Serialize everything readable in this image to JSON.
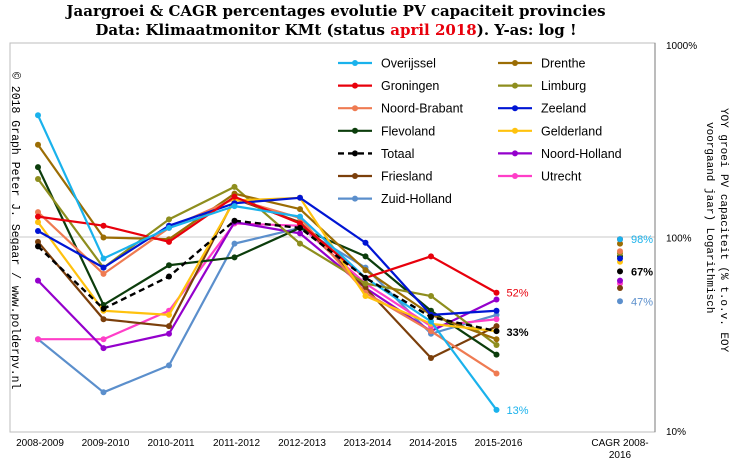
{
  "chart_data": {
    "type": "line",
    "title_line1": "Jaargroei & CAGR percentages evolutie PV capaciteit provincies",
    "title_line2_parts": [
      "Data: Klimaatmonitor  KMt (status ",
      "april 2018",
      "). Y-as: log !"
    ],
    "credit": "© 2018 Graph Peter J. Segaar / www.polderpv.nl",
    "ylabel_line1": "YOY groei PV capaciteit (% t.o.v. EOY",
    "ylabel_line2": "voorgaand jaar) Logarithmisch",
    "yscale": "log",
    "ylim": [
      10,
      1000
    ],
    "y_ticks": [
      "10%",
      "100%",
      "1000%"
    ],
    "categories": [
      "2008-2009",
      "2009-2010",
      "2010-2011",
      "2011-2012",
      "2012-2013",
      "2013-2014",
      "2014-2015",
      "2015-2016"
    ],
    "cagr_category_line1": "CAGR 2008-",
    "cagr_category_line2": "2016",
    "series": [
      {
        "name": "Overijssel",
        "color": "#1ab2ec",
        "values": [
          425,
          78,
          112,
          145,
          128,
          62,
          37,
          13
        ],
        "cagr": 98
      },
      {
        "name": "Groningen",
        "color": "#e8000c",
        "values": [
          128,
          115,
          95,
          162,
          118,
          62,
          80,
          52
        ],
        "cagr": 98
      },
      {
        "name": "Noord-Brabant",
        "color": "#ef7b52",
        "values": [
          135,
          65,
          112,
          158,
          126,
          52,
          33,
          20
        ],
        "cagr": 85
      },
      {
        "name": "Flevoland",
        "color": "#0c3d0c",
        "values": [
          230,
          45,
          72,
          79,
          112,
          80,
          42,
          25
        ],
        "cagr": 80
      },
      {
        "name": "Totaal",
        "color": "#000000",
        "dashed": true,
        "values": [
          90,
          43,
          63,
          122,
          112,
          62,
          39,
          33
        ],
        "cagr": 67
      },
      {
        "name": "Friesland",
        "color": "#7b3f0b",
        "values": [
          95,
          38,
          35,
          158,
          120,
          55,
          24,
          35
        ],
        "cagr": 55
      },
      {
        "name": "Zuid-Holland",
        "color": "#5b8fcc",
        "values": [
          30,
          16,
          22,
          93,
          112,
          70,
          32,
          40
        ],
        "cagr": 47
      },
      {
        "name": "Drenthe",
        "color": "#9b6d04",
        "values": [
          300,
          100,
          98,
          168,
          140,
          68,
          40,
          30
        ],
        "cagr": 93
      },
      {
        "name": "Limburg",
        "color": "#8e8e1e",
        "values": [
          200,
          70,
          124,
          182,
          93,
          58,
          50,
          28
        ],
        "cagr": 83
      },
      {
        "name": "Zeeland",
        "color": "#0015d4",
        "values": [
          108,
          70,
          115,
          150,
          160,
          94,
          40,
          42
        ],
        "cagr": 78
      },
      {
        "name": "Gelderland",
        "color": "#ffc20e",
        "values": [
          120,
          42,
          40,
          155,
          160,
          50,
          36,
          33
        ],
        "cagr": 75
      },
      {
        "name": "Noord-Holland",
        "color": "#9400cc",
        "values": [
          60,
          27,
          32,
          120,
          105,
          55,
          33,
          48
        ],
        "cagr": 60
      },
      {
        "name": "Utrecht",
        "color": "#ff3ec8",
        "values": [
          30,
          30,
          42,
          118,
          115,
          58,
          35,
          38
        ],
        "cagr": 58
      }
    ],
    "point_labels": [
      {
        "text": "52%",
        "color": "#e8000c",
        "bold": false
      },
      {
        "text": "33%",
        "color": "#000000",
        "bold": true
      },
      {
        "text": "13%",
        "color": "#1ab2ec",
        "bold": false
      },
      {
        "text": "98%",
        "color": "#1ab2ec",
        "bold": false
      },
      {
        "text": "67%",
        "color": "#000000",
        "bold": true
      },
      {
        "text": "47%",
        "color": "#5b8fcc",
        "bold": false
      }
    ],
    "legend_left": [
      "Overijssel",
      "Groningen",
      "Noord-Brabant",
      "Flevoland",
      "Totaal",
      "Friesland",
      "Zuid-Holland"
    ],
    "legend_right": [
      "Drenthe",
      "Limburg",
      "Zeeland",
      "Gelderland",
      "Noord-Holland",
      "Utrecht"
    ],
    "legend_placement": "top-right",
    "grid": "horizontal at 100%"
  }
}
